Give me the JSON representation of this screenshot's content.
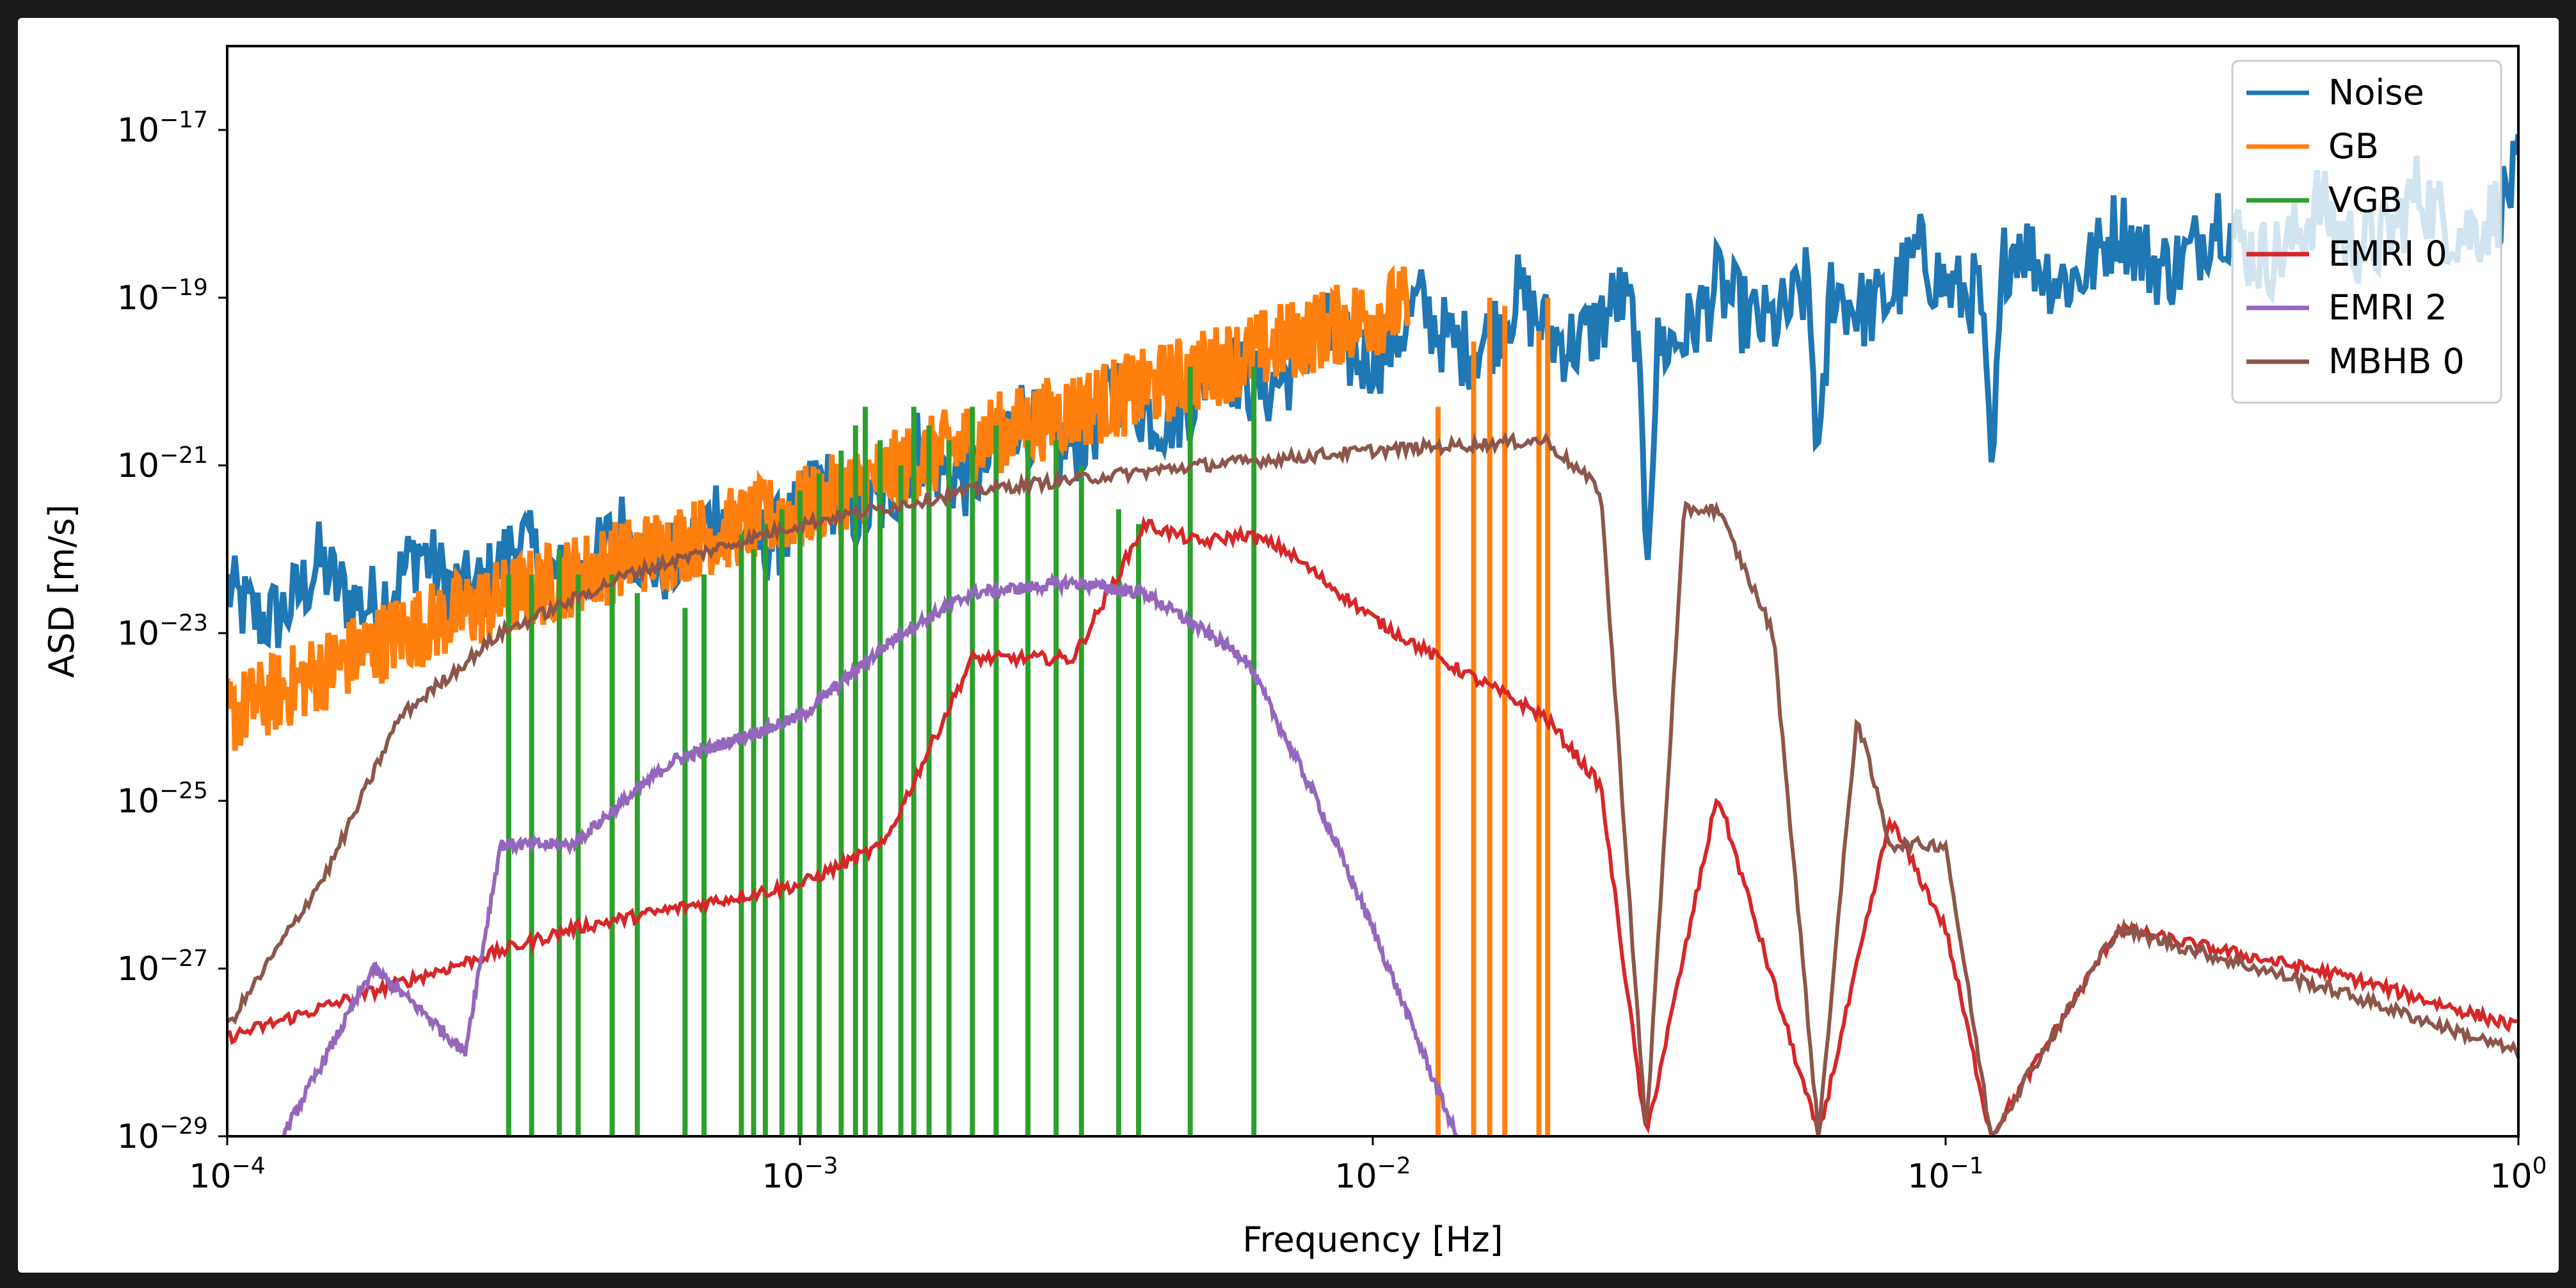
{
  "chart_data": {
    "type": "line",
    "title": "",
    "xlabel": "Frequency [Hz]",
    "ylabel": "ASD [m/s]",
    "x_scale": "log",
    "y_scale": "log",
    "xlim": [
      0.0001,
      1
    ],
    "ylim": [
      1e-29,
      1e-16
    ],
    "grid": false,
    "legend_position": "top-right",
    "x_ticks": [
      {
        "base": "10",
        "exp": "−4",
        "value": 0.0001
      },
      {
        "base": "10",
        "exp": "−3",
        "value": 0.001
      },
      {
        "base": "10",
        "exp": "−2",
        "value": 0.01
      },
      {
        "base": "10",
        "exp": "−1",
        "value": 0.1
      },
      {
        "base": "10",
        "exp": "0",
        "value": 1
      }
    ],
    "y_ticks": [
      {
        "base": "10",
        "exp": "−29",
        "value": 1e-29
      },
      {
        "base": "10",
        "exp": "−27",
        "value": 1e-27
      },
      {
        "base": "10",
        "exp": "−25",
        "value": 1e-25
      },
      {
        "base": "10",
        "exp": "−23",
        "value": 1e-23
      },
      {
        "base": "10",
        "exp": "−21",
        "value": 1e-21
      },
      {
        "base": "10",
        "exp": "−19",
        "value": 1e-19
      },
      {
        "base": "10",
        "exp": "−17",
        "value": 1e-17
      }
    ],
    "series": [
      {
        "name": "Noise",
        "color": "#1f77b4",
        "points": [
          [
            0.0001,
            5e-23
          ],
          [
            0.0002,
            1e-22
          ],
          [
            0.0005,
            2e-22
          ],
          [
            0.001,
            6e-22
          ],
          [
            0.002,
            3e-21
          ],
          [
            0.005,
            2e-20
          ],
          [
            0.01,
            8e-20
          ],
          [
            0.02,
            1.2e-19
          ],
          [
            0.03,
            1e-19
          ],
          [
            0.05,
            2e-19
          ],
          [
            0.1,
            4e-19
          ],
          [
            0.2,
            8e-19
          ],
          [
            0.5,
            1.5e-18
          ],
          [
            1,
            3e-18
          ]
        ],
        "notches": [
          0.0301,
          0.0602,
          0.1204
        ]
      },
      {
        "name": "GB",
        "color": "#ff7f0e",
        "points": [
          [
            0.0001,
            1e-24
          ],
          [
            0.0002,
            1e-23
          ],
          [
            0.0005,
            8e-23
          ],
          [
            0.001,
            3e-22
          ],
          [
            0.002,
            2e-21
          ],
          [
            0.004,
            8e-21
          ],
          [
            0.008,
            4e-20
          ],
          [
            0.0115,
            8e-20
          ]
        ],
        "spikes": [
          [
            0.013,
            5e-21
          ],
          [
            0.015,
            3e-20
          ],
          [
            0.016,
            1e-19
          ],
          [
            0.017,
            8e-20
          ],
          [
            0.0195,
            4e-20
          ],
          [
            0.0202,
            1e-19
          ]
        ]
      },
      {
        "name": "VGB",
        "color": "#2ca02c",
        "spikes": [
          [
            0.00031,
            5e-23
          ],
          [
            0.00034,
            5e-23
          ],
          [
            0.00038,
            1e-22
          ],
          [
            0.00041,
            5e-23
          ],
          [
            0.00047,
            5e-23
          ],
          [
            0.00052,
            3e-23
          ],
          [
            0.00063,
            2e-23
          ],
          [
            0.00068,
            5e-23
          ],
          [
            0.00079,
            1.5e-22
          ],
          [
            0.00083,
            1e-22
          ],
          [
            0.00087,
            2e-22
          ],
          [
            0.00093,
            3e-22
          ],
          [
            0.001,
            5e-22
          ],
          [
            0.00108,
            8e-22
          ],
          [
            0.00118,
            1.5e-21
          ],
          [
            0.00125,
            3e-21
          ],
          [
            0.0013,
            5e-21
          ],
          [
            0.00138,
            2e-21
          ],
          [
            0.0015,
            1e-21
          ],
          [
            0.00158,
            5e-21
          ],
          [
            0.00168,
            3e-21
          ],
          [
            0.00182,
            2e-21
          ],
          [
            0.002,
            5e-21
          ],
          [
            0.0022,
            3e-21
          ],
          [
            0.0025,
            2e-21
          ],
          [
            0.0028,
            2e-21
          ],
          [
            0.0031,
            1e-21
          ],
          [
            0.0036,
            3e-22
          ],
          [
            0.0039,
            2e-22
          ],
          [
            0.0048,
            1.5e-20
          ],
          [
            0.0062,
            1.5e-20
          ]
        ]
      },
      {
        "name": "EMRI 0",
        "color": "#d62728",
        "points": [
          [
            0.0001,
            1.5e-28
          ],
          [
            0.0004,
            3e-27
          ],
          [
            0.001,
            1e-26
          ],
          [
            0.0014,
            3e-26
          ],
          [
            0.002,
            5e-24
          ],
          [
            0.003,
            5e-24
          ],
          [
            0.004,
            2e-22
          ],
          [
            0.005,
            1.2e-22
          ],
          [
            0.006,
            1.5e-22
          ],
          [
            0.007,
            1e-22
          ],
          [
            0.01,
            1.5e-23
          ],
          [
            0.013,
            5e-24
          ],
          [
            0.02,
            1e-24
          ],
          [
            0.025,
            1.5e-25
          ],
          [
            0.03,
            1e-29
          ],
          [
            0.04,
            1.2e-25
          ],
          [
            0.06,
            1e-29
          ],
          [
            0.08,
            6e-26
          ],
          [
            0.1,
            3e-27
          ],
          [
            0.12,
            1e-29
          ],
          [
            0.2,
            3e-27
          ],
          [
            0.5,
            8e-28
          ],
          [
            1,
            2e-28
          ]
        ]
      },
      {
        "name": "EMRI 2",
        "color": "#9467bd",
        "points": [
          [
            0.000125,
            1e-29
          ],
          [
            0.00015,
            1e-28
          ],
          [
            0.00018,
            1e-27
          ],
          [
            0.00022,
            3e-28
          ],
          [
            0.00026,
            1e-28
          ],
          [
            0.0003,
            3e-26
          ],
          [
            0.0004,
            3e-26
          ],
          [
            0.0006,
            3e-25
          ],
          [
            0.001,
            1e-24
          ],
          [
            0.0015,
            1e-23
          ],
          [
            0.002,
            3e-23
          ],
          [
            0.003,
            4e-23
          ],
          [
            0.004,
            3e-23
          ],
          [
            0.006,
            5e-24
          ],
          [
            0.008,
            1e-25
          ],
          [
            0.01,
            3e-27
          ],
          [
            0.014,
            1e-29
          ]
        ]
      },
      {
        "name": "MBHB 0",
        "color": "#8c564b",
        "points": [
          [
            0.0001,
            2e-28
          ],
          [
            0.00015,
            1.5e-26
          ],
          [
            0.0002,
            1e-24
          ],
          [
            0.0003,
            1e-23
          ],
          [
            0.0005,
            5e-23
          ],
          [
            0.001,
            2e-22
          ],
          [
            0.002,
            5e-22
          ],
          [
            0.005,
            1e-21
          ],
          [
            0.01,
            1.5e-21
          ],
          [
            0.02,
            2e-21
          ],
          [
            0.025,
            5e-22
          ],
          [
            0.03,
            1e-29
          ],
          [
            0.035,
            3e-22
          ],
          [
            0.04,
            3e-22
          ],
          [
            0.05,
            1e-23
          ],
          [
            0.06,
            1e-29
          ],
          [
            0.07,
            1e-24
          ],
          [
            0.08,
            3e-26
          ],
          [
            0.1,
            3e-26
          ],
          [
            0.12,
            1e-29
          ],
          [
            0.2,
            3e-27
          ],
          [
            0.5,
            5e-28
          ],
          [
            1,
            1e-28
          ]
        ]
      }
    ]
  }
}
